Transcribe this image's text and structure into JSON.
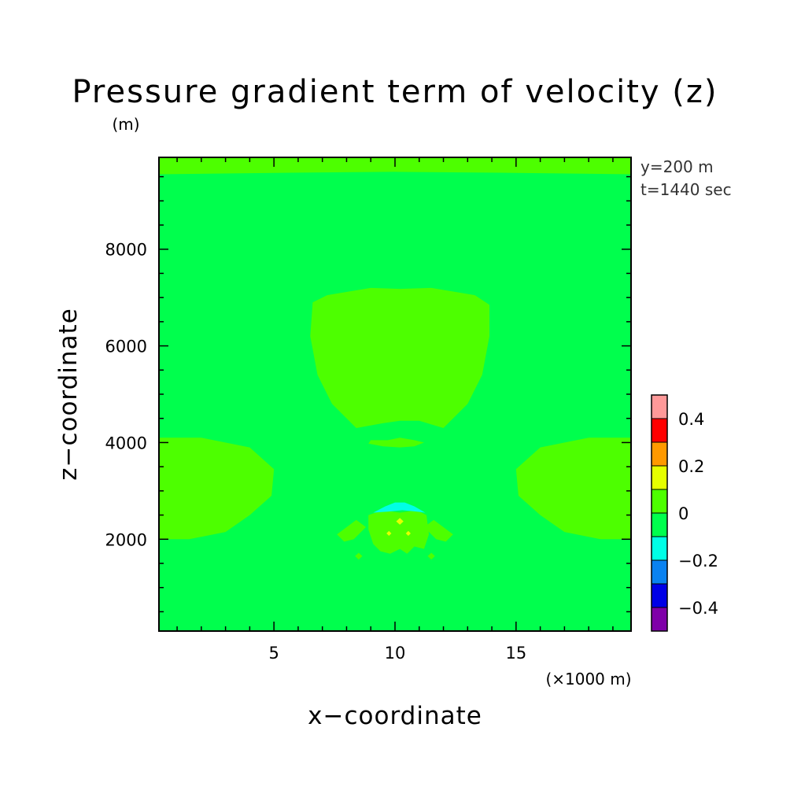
{
  "chart_data": {
    "type": "heatmap",
    "title": "Pressure gradient term of velocity (z)",
    "y_unit": "(m)",
    "x_unit": "(×1000 m)",
    "xlabel": "x−coordinate",
    "ylabel": "z−coordinate",
    "info_lines": [
      "y=200 m",
      "t=1440 sec"
    ],
    "xlim": [
      0.25,
      19.75
    ],
    "ylim": [
      100,
      9900
    ],
    "x_ticks": [
      5,
      10,
      15
    ],
    "x_tick_labels": [
      "5",
      "10",
      "15"
    ],
    "y_ticks": [
      2000,
      4000,
      6000,
      8000
    ],
    "y_tick_labels": [
      "2000",
      "4000",
      "6000",
      "8000"
    ],
    "x_minor_step": 1,
    "y_minor_step": 500,
    "background_level": "0",
    "colorbar": {
      "levels": [
        {
          "range": [
            -0.5,
            -0.4
          ],
          "color": "#7f00a8"
        },
        {
          "range": [
            -0.4,
            -0.3
          ],
          "color": "#0000e6"
        },
        {
          "range": [
            -0.3,
            -0.2
          ],
          "color": "#0a82f0"
        },
        {
          "range": [
            -0.2,
            -0.1
          ],
          "color": "#00ffe6"
        },
        {
          "range": [
            -0.1,
            0.0
          ],
          "color": "#00ff4d"
        },
        {
          "range": [
            0.0,
            0.1
          ],
          "color": "#4dff00"
        },
        {
          "range": [
            0.1,
            0.2
          ],
          "color": "#e6ff00"
        },
        {
          "range": [
            0.2,
            0.3
          ],
          "color": "#ff9900"
        },
        {
          "range": [
            0.3,
            0.4
          ],
          "color": "#ff0000"
        },
        {
          "range": [
            0.4,
            0.5
          ],
          "color": "#ff9999"
        }
      ],
      "tick_values": [
        0.4,
        0.2,
        0,
        -0.2,
        -0.4
      ],
      "tick_labels": [
        "0.4",
        "0.2",
        "0",
        "−0.2",
        "−0.4"
      ]
    },
    "regions": [
      {
        "level": "0 to 0.1",
        "polygon": [
          [
            0.25,
            9900
          ],
          [
            19.75,
            9900
          ],
          [
            19.75,
            9550
          ],
          [
            15,
            9580
          ],
          [
            10,
            9600
          ],
          [
            5,
            9580
          ],
          [
            0.25,
            9550
          ]
        ]
      },
      {
        "level": "0 to 0.1",
        "polygon": [
          [
            6.6,
            6900
          ],
          [
            7.2,
            7050
          ],
          [
            9.0,
            7200
          ],
          [
            10.2,
            7180
          ],
          [
            11.5,
            7200
          ],
          [
            13.3,
            7050
          ],
          [
            13.9,
            6850
          ],
          [
            13.9,
            6200
          ],
          [
            13.6,
            5400
          ],
          [
            13.0,
            4800
          ],
          [
            12.0,
            4300
          ],
          [
            11.0,
            4450
          ],
          [
            10.2,
            4450
          ],
          [
            9.5,
            4400
          ],
          [
            8.4,
            4300
          ],
          [
            7.4,
            4800
          ],
          [
            6.8,
            5400
          ],
          [
            6.5,
            6200
          ]
        ]
      },
      {
        "level": "0 to 0.1",
        "polygon": [
          [
            0.25,
            4100
          ],
          [
            2.0,
            4100
          ],
          [
            4.0,
            3900
          ],
          [
            5.0,
            3450
          ],
          [
            4.9,
            2900
          ],
          [
            4.0,
            2500
          ],
          [
            3.0,
            2150
          ],
          [
            1.5,
            2000
          ],
          [
            0.25,
            2000
          ]
        ]
      },
      {
        "level": "0 to 0.1",
        "polygon": [
          [
            19.75,
            4100
          ],
          [
            18.0,
            4100
          ],
          [
            16.0,
            3900
          ],
          [
            15.0,
            3450
          ],
          [
            15.1,
            2900
          ],
          [
            16.0,
            2500
          ],
          [
            17.0,
            2150
          ],
          [
            18.5,
            2000
          ],
          [
            19.75,
            2000
          ]
        ]
      },
      {
        "level": "0 to 0.1",
        "polygon": [
          [
            9.0,
            4050
          ],
          [
            9.7,
            4050
          ],
          [
            10.2,
            4100
          ],
          [
            10.8,
            4050
          ],
          [
            11.2,
            4000
          ],
          [
            10.8,
            3920
          ],
          [
            10.2,
            3900
          ],
          [
            9.5,
            3920
          ],
          [
            8.9,
            3980
          ]
        ]
      },
      {
        "level": "0 to 0.1",
        "polygon": [
          [
            8.9,
            2500
          ],
          [
            9.5,
            2600
          ],
          [
            10.2,
            2550
          ],
          [
            10.9,
            2600
          ],
          [
            11.3,
            2500
          ],
          [
            11.4,
            2100
          ],
          [
            11.2,
            1800
          ],
          [
            10.8,
            1850
          ],
          [
            10.5,
            1700
          ],
          [
            10.2,
            1800
          ],
          [
            9.8,
            1700
          ],
          [
            9.4,
            1750
          ],
          [
            9.1,
            1900
          ],
          [
            8.9,
            2200
          ]
        ]
      },
      {
        "level": "0 to 0.1",
        "polygon": [
          [
            7.6,
            2100
          ],
          [
            8.4,
            2400
          ],
          [
            8.8,
            2250
          ],
          [
            8.3,
            2000
          ],
          [
            7.9,
            1950
          ]
        ]
      },
      {
        "level": "0 to 0.1",
        "polygon": [
          [
            12.4,
            2100
          ],
          [
            11.6,
            2400
          ],
          [
            11.2,
            2250
          ],
          [
            11.7,
            2000
          ],
          [
            12.1,
            1950
          ]
        ]
      },
      {
        "level": "0 to 0.1",
        "polygon": [
          [
            8.5,
            1720
          ],
          [
            8.65,
            1650
          ],
          [
            8.5,
            1580
          ],
          [
            8.35,
            1650
          ]
        ]
      },
      {
        "level": "0 to 0.1",
        "polygon": [
          [
            11.5,
            1720
          ],
          [
            11.65,
            1650
          ],
          [
            11.5,
            1580
          ],
          [
            11.35,
            1650
          ]
        ]
      },
      {
        "level": "-0.2 to -0.1",
        "polygon": [
          [
            9.1,
            2550
          ],
          [
            9.6,
            2680
          ],
          [
            10.0,
            2760
          ],
          [
            10.4,
            2760
          ],
          [
            10.8,
            2680
          ],
          [
            11.25,
            2550
          ],
          [
            10.9,
            2570
          ],
          [
            10.3,
            2600
          ],
          [
            9.7,
            2570
          ]
        ]
      },
      {
        "level": "0.1 to 0.2",
        "polygon": [
          [
            10.2,
            2440
          ],
          [
            10.35,
            2370
          ],
          [
            10.2,
            2300
          ],
          [
            10.05,
            2370
          ]
        ]
      },
      {
        "level": "0.1 to 0.2",
        "polygon": [
          [
            9.75,
            2170
          ],
          [
            9.85,
            2120
          ],
          [
            9.75,
            2070
          ],
          [
            9.65,
            2120
          ]
        ]
      },
      {
        "level": "0.1 to 0.2",
        "polygon": [
          [
            10.55,
            2170
          ],
          [
            10.65,
            2120
          ],
          [
            10.55,
            2070
          ],
          [
            10.45,
            2120
          ]
        ]
      }
    ]
  }
}
